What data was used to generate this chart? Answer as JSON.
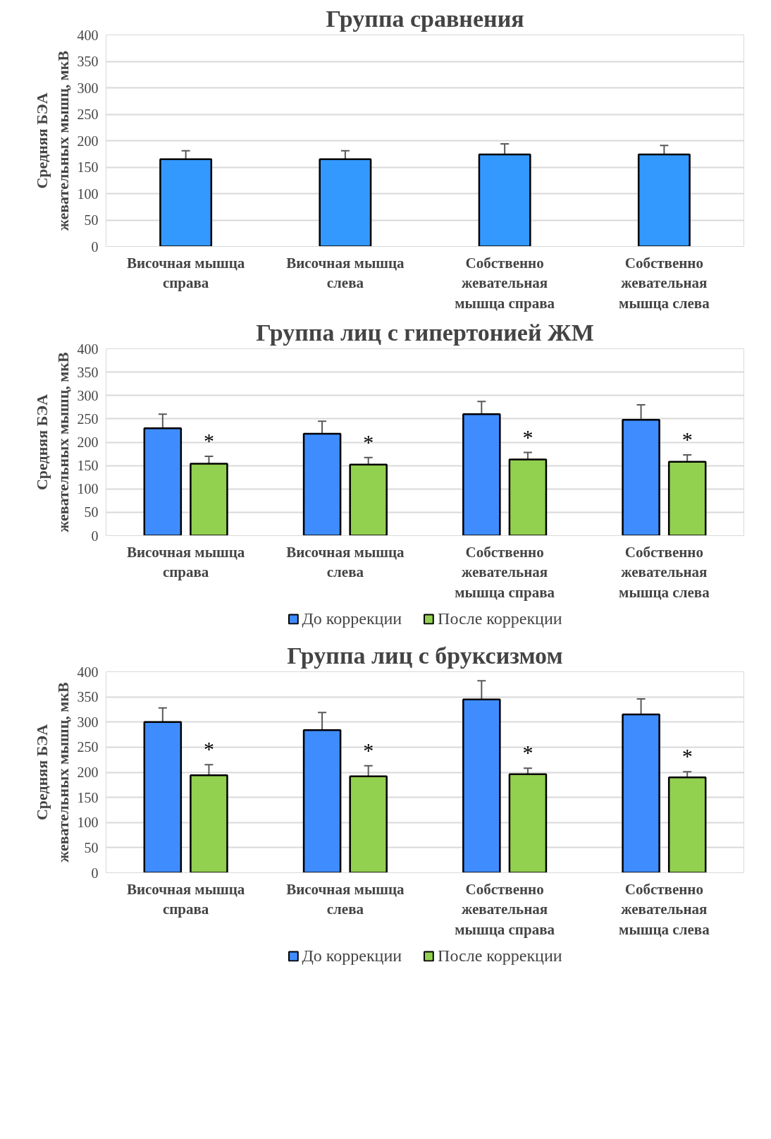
{
  "chart_data": [
    {
      "type": "bar",
      "title": "Группа сравнения",
      "ylabel": "Средняя БЭА жевательных мышц, мкВ",
      "categories": [
        "Височная мышца справа",
        "Височная мышца слева",
        "Собственно жевательная мышца справа",
        "Собственно жевательная мышца слева"
      ],
      "series": [
        {
          "color": "#3399ff",
          "values": [
            165,
            165,
            174,
            174
          ],
          "errors": [
            16,
            16,
            20,
            17
          ]
        }
      ],
      "ylim": [
        0,
        400
      ],
      "yticks": [
        0,
        50,
        100,
        150,
        200,
        250,
        300,
        350,
        400
      ],
      "grid": "y"
    },
    {
      "type": "bar",
      "title": "Группа лиц с гипертонией ЖМ",
      "ylabel": "Средняя БЭА жевательных мышц, мкВ",
      "categories": [
        "Височная мышца справа",
        "Височная мышца слева",
        "Собственно жевательная мышца справа",
        "Собственно жевательная мышца слева"
      ],
      "series": [
        {
          "name": "До коррекции",
          "color": "#3f8cff",
          "values": [
            230,
            218,
            260,
            248
          ],
          "errors": [
            30,
            27,
            27,
            32
          ]
        },
        {
          "name": "После коррекции",
          "color": "#92d050",
          "values": [
            154,
            152,
            163,
            158
          ],
          "errors": [
            16,
            15,
            15,
            15
          ]
        }
      ],
      "annotations": [
        "*",
        "*",
        "*",
        "*"
      ],
      "ylim": [
        0,
        400
      ],
      "yticks": [
        0,
        50,
        100,
        150,
        200,
        250,
        300,
        350,
        400
      ],
      "grid": "y",
      "legend": "bottom"
    },
    {
      "type": "bar",
      "title": "Группа лиц с бруксизмом",
      "ylabel": "Средняя БЭА жевательных мышц, мкВ",
      "categories": [
        "Височная мышца справа",
        "Височная мышца слева",
        "Собственно жевательная мышца справа",
        "Собственно жевательная мышца слева"
      ],
      "series": [
        {
          "name": "До коррекции",
          "color": "#3f8cff",
          "values": [
            300,
            284,
            345,
            315
          ],
          "errors": [
            28,
            35,
            37,
            31
          ]
        },
        {
          "name": "После коррекции",
          "color": "#92d050",
          "values": [
            194,
            192,
            196,
            190
          ],
          "errors": [
            21,
            21,
            12,
            11
          ]
        }
      ],
      "annotations": [
        "*",
        "*",
        "*",
        "*"
      ],
      "ylim": [
        0,
        400
      ],
      "yticks": [
        0,
        50,
        100,
        150,
        200,
        250,
        300,
        350,
        400
      ],
      "grid": "y",
      "legend": "bottom"
    }
  ]
}
